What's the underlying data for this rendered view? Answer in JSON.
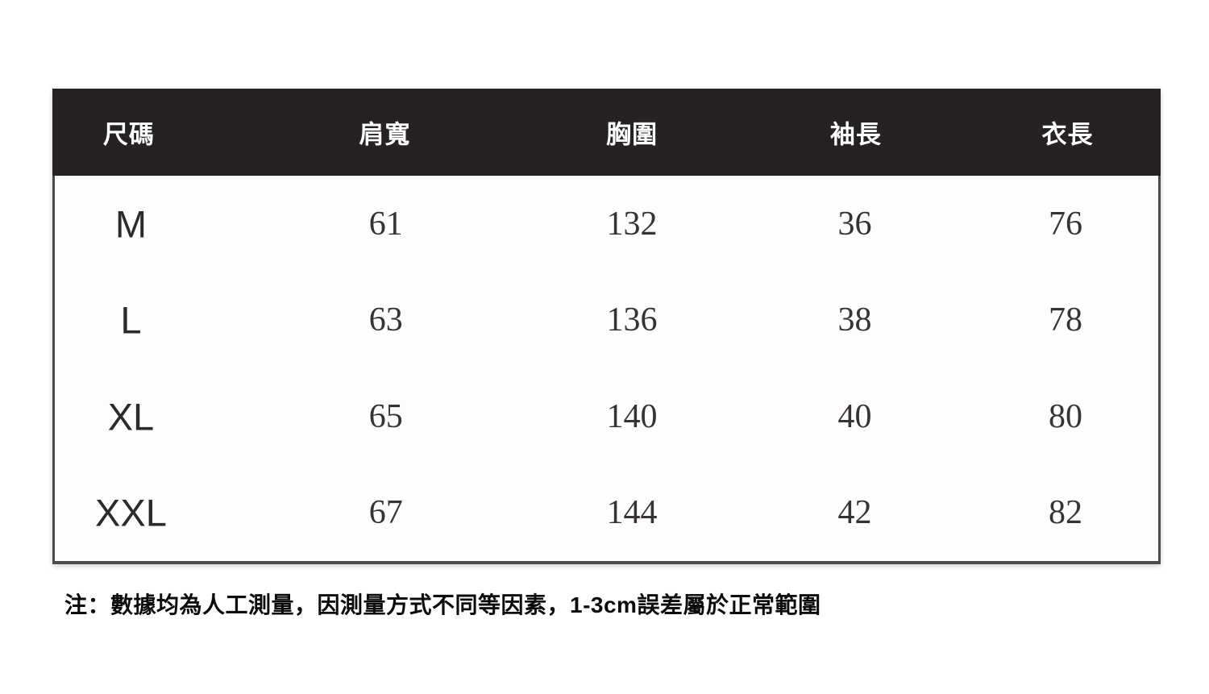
{
  "chart_data": {
    "type": "table",
    "columns": [
      "尺碼",
      "肩寬",
      "胸圍",
      "袖長",
      "衣長"
    ],
    "rows": [
      [
        "M",
        "61",
        "132",
        "36",
        "76"
      ],
      [
        "L",
        "63",
        "136",
        "38",
        "78"
      ],
      [
        "XL",
        "65",
        "140",
        "40",
        "80"
      ],
      [
        "XXL",
        "67",
        "144",
        "42",
        "82"
      ]
    ]
  },
  "note": "注：數據均為人工測量，因測量方式不同等因素，1-3cm誤差屬於正常範圍",
  "colors": {
    "page_bg": "#ffffff",
    "table_bg": "#fdfdfd",
    "header_bg": "#262223",
    "header_text": "#ffffff",
    "border": "#4b4b4b",
    "size_text": "#2d2a2b",
    "value_text": "#373334",
    "note_text": "#0c0c0c"
  }
}
